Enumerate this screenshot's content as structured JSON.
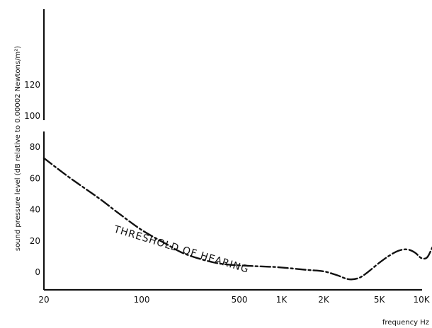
{
  "chart_data": {
    "type": "line",
    "title": "",
    "xlabel": "frequency Hz",
    "ylabel": "sound pressure level (dB relative to 0.00002 Newtons/m²)",
    "xscale": "log",
    "xlim": [
      20,
      20000
    ],
    "ylim": [
      -5,
      140
    ],
    "grid": false,
    "x_ticks": [
      {
        "value": 20,
        "label": "20"
      },
      {
        "value": 100,
        "label": "100"
      },
      {
        "value": 500,
        "label": "500"
      },
      {
        "value": 1000,
        "label": "1K"
      },
      {
        "value": 2000,
        "label": "2K"
      },
      {
        "value": 5000,
        "label": "5K"
      },
      {
        "value": 10000,
        "label": "10K"
      }
    ],
    "y_ticks": [
      {
        "value": 0,
        "label": "0"
      },
      {
        "value": 20,
        "label": "20"
      },
      {
        "value": 40,
        "label": "40"
      },
      {
        "value": 60,
        "label": "60"
      },
      {
        "value": 80,
        "label": "80"
      },
      {
        "value": 100,
        "label": "100"
      },
      {
        "value": 120,
        "label": "120"
      }
    ],
    "series": [
      {
        "name": "THRESHOLD OF HEARING",
        "line_style": "dashed",
        "x": [
          20,
          30,
          50,
          70,
          100,
          150,
          200,
          300,
          400,
          600,
          800,
          1000,
          1500,
          2000,
          2500,
          3000,
          3500,
          4000,
          5000,
          6000,
          7000,
          8000,
          9000,
          10000,
          11000,
          12000,
          13000
        ],
        "y": [
          73,
          61,
          47,
          37,
          27,
          18,
          12,
          7,
          5,
          4,
          3.5,
          3,
          1.5,
          0.5,
          -2,
          -4.5,
          -4,
          -1,
          6,
          11,
          14,
          14.5,
          12.5,
          9,
          9.5,
          16,
          22
        ]
      }
    ],
    "annotations": [
      {
        "text": "THRESHOLD OF HEARING"
      }
    ]
  }
}
